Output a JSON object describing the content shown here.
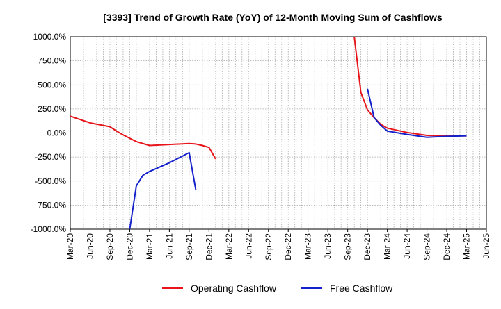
{
  "chart_data": {
    "type": "line",
    "title": "[3393]  Trend of Growth Rate (YoY) of 12-Month Moving Sum of Cashflows",
    "xlabel": "",
    "ylabel": "",
    "ylim": [
      -1000,
      1000
    ],
    "yticks": [
      1000,
      750,
      500,
      250,
      0,
      -250,
      -500,
      -750,
      -1000
    ],
    "ytick_labels": [
      "1000.0%",
      "750.0%",
      "500.0%",
      "250.0%",
      "0.0%",
      "-250.0%",
      "-500.0%",
      "-750.0%",
      "-1000.0%"
    ],
    "x_tick_labels": [
      "Mar-20",
      "Jun-20",
      "Sep-20",
      "Dec-20",
      "Mar-21",
      "Jun-21",
      "Sep-21",
      "Dec-21",
      "Mar-22",
      "Jun-22",
      "Sep-22",
      "Dec-22",
      "Mar-23",
      "Jun-23",
      "Sep-23",
      "Dec-23",
      "Mar-24",
      "Jun-24",
      "Sep-24",
      "Dec-24",
      "Mar-25",
      "Jun-25"
    ],
    "x_months": [
      "2020-03",
      "2020-04",
      "2020-05",
      "2020-06",
      "2020-07",
      "2020-08",
      "2020-09",
      "2020-10",
      "2020-11",
      "2020-12",
      "2021-01",
      "2021-02",
      "2021-03",
      "2021-04",
      "2021-05",
      "2021-06",
      "2021-07",
      "2021-08",
      "2021-09",
      "2021-10",
      "2021-11",
      "2021-12",
      "2022-01",
      "2022-02",
      "2022-03",
      "2022-04",
      "2022-05",
      "2022-06",
      "2022-07",
      "2022-08",
      "2022-09",
      "2022-10",
      "2022-11",
      "2022-12",
      "2023-01",
      "2023-02",
      "2023-03",
      "2023-04",
      "2023-05",
      "2023-06",
      "2023-07",
      "2023-08",
      "2023-09",
      "2023-10",
      "2023-11",
      "2023-12",
      "2024-01",
      "2024-02",
      "2024-03",
      "2024-04",
      "2024-05",
      "2024-06",
      "2024-07",
      "2024-08",
      "2024-09",
      "2024-10",
      "2024-11",
      "2024-12",
      "2025-01",
      "2025-02",
      "2025-03",
      "2025-04",
      "2025-05",
      "2025-06"
    ],
    "grid": true,
    "legend_position": "bottom-center",
    "series": [
      {
        "name": "Operating Cashflow",
        "color": "#e8141a",
        "points": [
          [
            "2020-03",
            175
          ],
          [
            "2020-06",
            105
          ],
          [
            "2020-09",
            65
          ],
          [
            "2020-10",
            20
          ],
          [
            "2020-11",
            -20
          ],
          [
            "2020-12",
            -55
          ],
          [
            "2021-01",
            -90
          ],
          [
            "2021-02",
            -110
          ],
          [
            "2021-03",
            -130
          ],
          [
            "2021-06",
            -120
          ],
          [
            "2021-09",
            -110
          ],
          [
            "2021-10",
            -115
          ],
          [
            "2021-11",
            -130
          ],
          [
            "2021-12",
            -150
          ],
          [
            "2022-01",
            -270
          ],
          null,
          [
            "2023-10",
            1000
          ],
          [
            "2023-11",
            420
          ],
          [
            "2023-12",
            240
          ],
          [
            "2024-01",
            160
          ],
          [
            "2024-02",
            90
          ],
          [
            "2024-03",
            50
          ],
          [
            "2024-06",
            5
          ],
          [
            "2024-09",
            -25
          ],
          [
            "2024-12",
            -30
          ],
          [
            "2025-03",
            -30
          ]
        ]
      },
      {
        "name": "Free Cashflow",
        "color": "#1420cc",
        "points": [
          [
            "2020-12",
            -1000
          ],
          [
            "2021-01",
            -550
          ],
          [
            "2021-02",
            -440
          ],
          [
            "2021-03",
            -400
          ],
          [
            "2021-06",
            -310
          ],
          [
            "2021-09",
            -205
          ],
          [
            "2021-10",
            -590
          ],
          null,
          [
            "2023-12",
            460
          ],
          [
            "2024-01",
            160
          ],
          [
            "2024-02",
            80
          ],
          [
            "2024-03",
            20
          ],
          [
            "2024-06",
            -15
          ],
          [
            "2024-09",
            -45
          ],
          [
            "2024-12",
            -35
          ],
          [
            "2025-03",
            -30
          ]
        ]
      }
    ]
  }
}
